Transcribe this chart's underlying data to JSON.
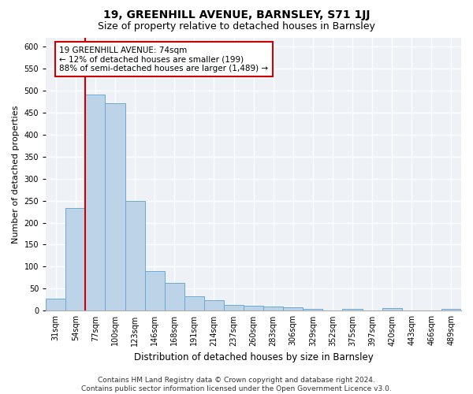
{
  "title": "19, GREENHILL AVENUE, BARNSLEY, S71 1JJ",
  "subtitle": "Size of property relative to detached houses in Barnsley",
  "xlabel": "Distribution of detached houses by size in Barnsley",
  "ylabel": "Number of detached properties",
  "categories": [
    "31sqm",
    "54sqm",
    "77sqm",
    "100sqm",
    "123sqm",
    "146sqm",
    "168sqm",
    "191sqm",
    "214sqm",
    "237sqm",
    "260sqm",
    "283sqm",
    "306sqm",
    "329sqm",
    "352sqm",
    "375sqm",
    "397sqm",
    "420sqm",
    "443sqm",
    "466sqm",
    "489sqm"
  ],
  "values": [
    27,
    233,
    490,
    470,
    250,
    90,
    63,
    33,
    24,
    13,
    11,
    10,
    8,
    5,
    1,
    5,
    1,
    7,
    1,
    1,
    5
  ],
  "bar_color": "#bdd4e8",
  "bar_edge_color": "#6aaad4",
  "annotation_box_text": "19 GREENHILL AVENUE: 74sqm\n← 12% of detached houses are smaller (199)\n88% of semi-detached houses are larger (1,489) →",
  "vline_color": "#cc0000",
  "vline_x": 1.5,
  "ylim": [
    0,
    620
  ],
  "yticks": [
    0,
    50,
    100,
    150,
    200,
    250,
    300,
    350,
    400,
    450,
    500,
    550,
    600
  ],
  "background_color": "#eef2f7",
  "grid_color": "#ffffff",
  "footer_text": "Contains HM Land Registry data © Crown copyright and database right 2024.\nContains public sector information licensed under the Open Government Licence v3.0.",
  "title_fontsize": 10,
  "subtitle_fontsize": 9,
  "xlabel_fontsize": 8.5,
  "ylabel_fontsize": 8,
  "tick_fontsize": 7,
  "annotation_fontsize": 7.5,
  "footer_fontsize": 6.5
}
